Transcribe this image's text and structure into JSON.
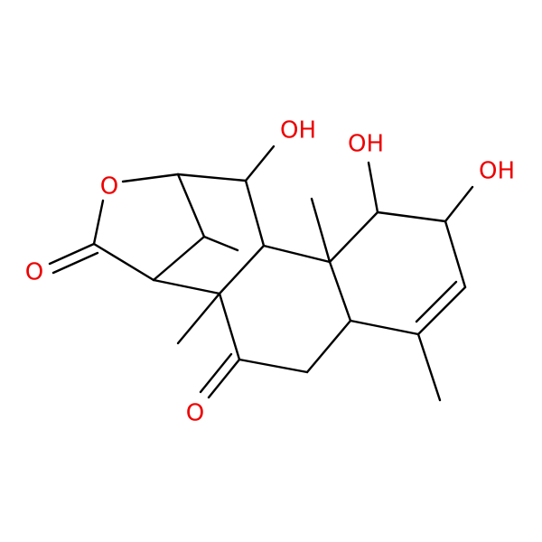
{
  "atoms": [
    {
      "label": "OH"
    },
    {
      "label": "OH"
    },
    {
      "label": "OH"
    },
    {
      "label": "O"
    },
    {
      "label": "O"
    },
    {
      "label": "O"
    }
  ]
}
